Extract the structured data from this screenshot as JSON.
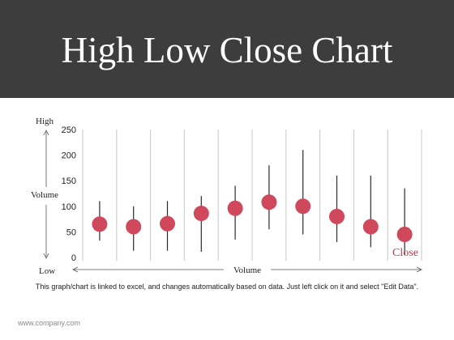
{
  "header": {
    "title": "High Low Close Chart"
  },
  "caption": "This graph/chart is linked to excel, and changes automatically based on data. Just left click on it and select \"Edit Data\".",
  "footer": {
    "website": "www.company.com"
  },
  "colors": {
    "header_bg": "#3d3d3d",
    "marker": "#d0485b",
    "close_label": "#b5394a",
    "stem": "#2a2a2a",
    "grid": "#c8c8c8"
  },
  "chart_data": {
    "type": "scatter",
    "subtype": "high-low-close",
    "ylim": [
      0,
      250
    ],
    "yticks": [
      0,
      50,
      100,
      150,
      200,
      250
    ],
    "grid": "vertical",
    "annotations": {
      "high": "High",
      "low": "Low",
      "volume_y": "Volume",
      "volume_x": "Volume",
      "close": "Close"
    },
    "points": [
      {
        "high": 110,
        "low": 33,
        "close": 65
      },
      {
        "high": 100,
        "low": 13,
        "close": 60
      },
      {
        "high": 110,
        "low": 13,
        "close": 66
      },
      {
        "high": 120,
        "low": 11,
        "close": 86
      },
      {
        "high": 140,
        "low": 35,
        "close": 96
      },
      {
        "high": 180,
        "low": 55,
        "close": 108
      },
      {
        "high": 210,
        "low": 45,
        "close": 100
      },
      {
        "high": 160,
        "low": 30,
        "close": 80
      },
      {
        "high": 160,
        "low": 20,
        "close": 60
      },
      {
        "high": 135,
        "low": 5,
        "close": 45
      }
    ]
  }
}
